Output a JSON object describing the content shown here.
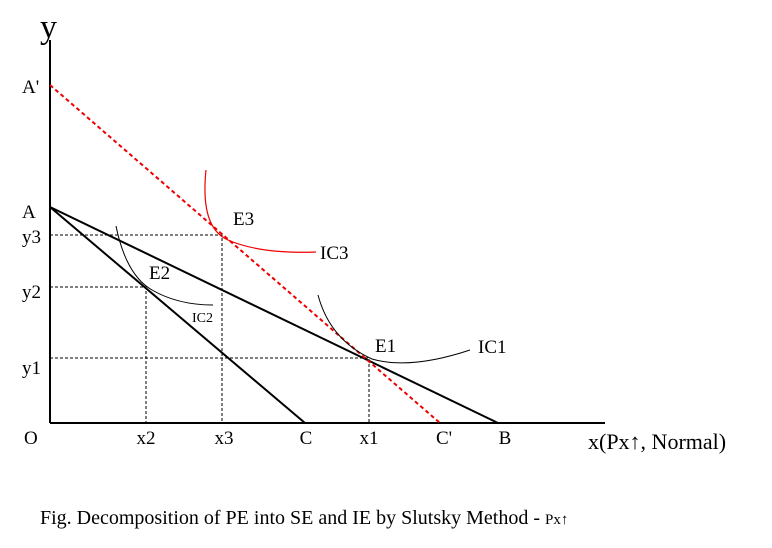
{
  "axes": {
    "y_label": "y",
    "x_label": "x(Px↑, Normal)",
    "origin": "O"
  },
  "y_axis_points": [
    "A'",
    "A",
    "y3",
    "y2",
    "y1"
  ],
  "x_axis_points": [
    "x2",
    "x3",
    "C",
    "x1",
    "C'",
    "B"
  ],
  "equilibria": [
    "E3",
    "E2",
    "E1"
  ],
  "curves": [
    "IC3",
    "IC2",
    "IC1"
  ],
  "caption": {
    "text": "Fig. Decomposition of PE into SE and IE by Slutsky Method - ",
    "suffix": "Px↑"
  }
}
